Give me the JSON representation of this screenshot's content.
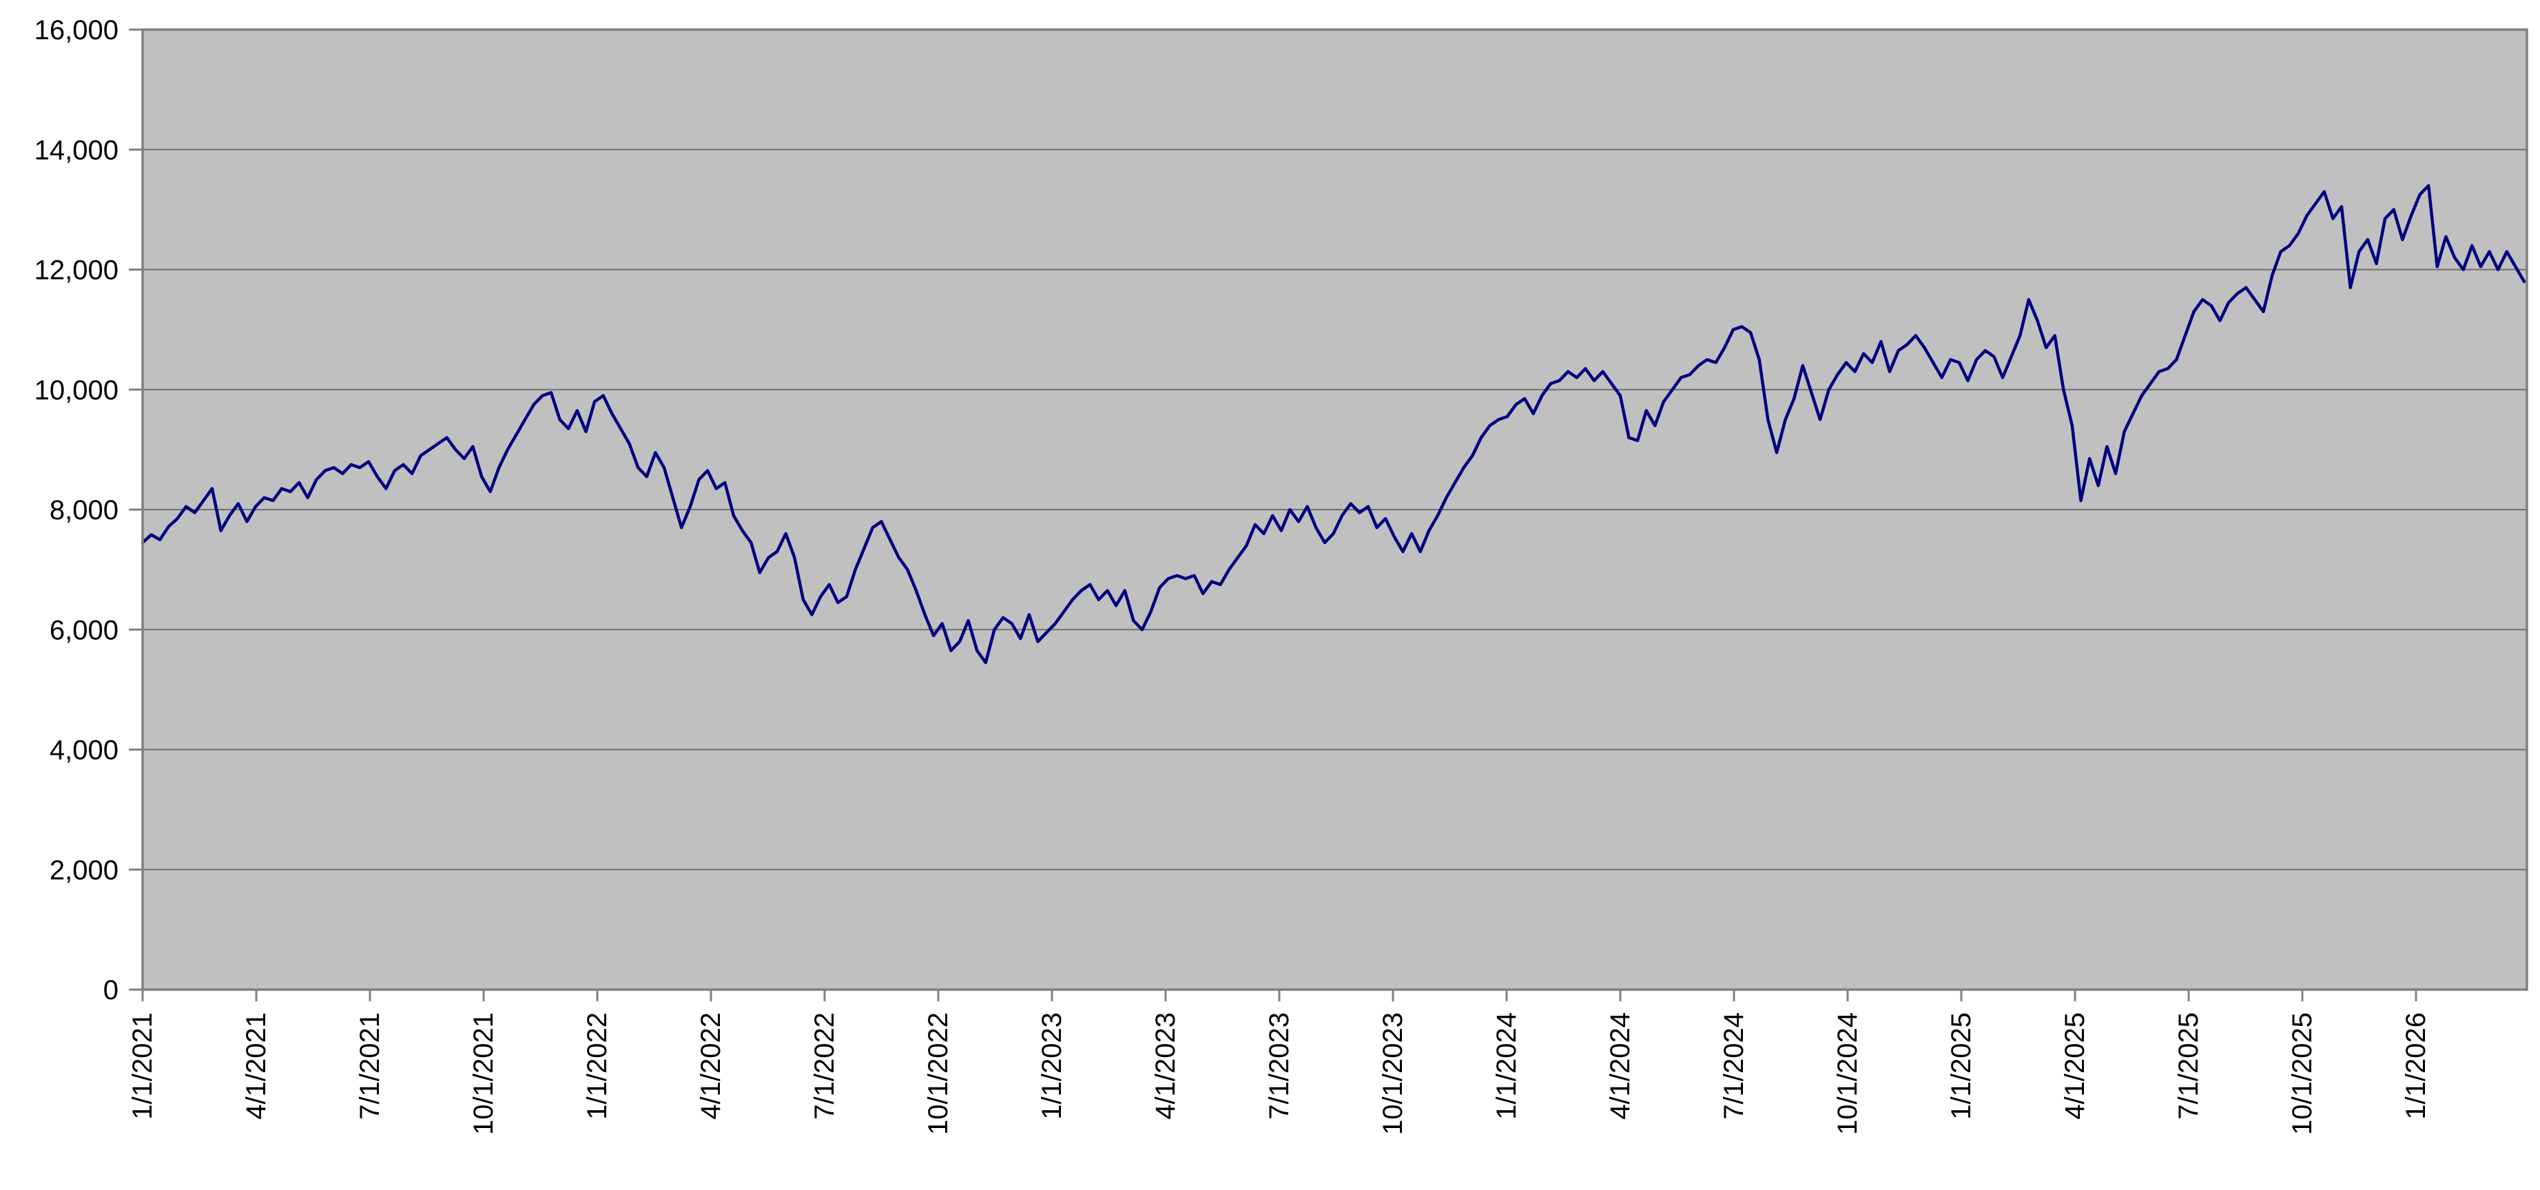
{
  "chart_data": {
    "type": "line",
    "title": "",
    "xlabel": "",
    "ylabel": "",
    "grid": true,
    "legend": false,
    "plot_bg_color": "#c0c0c0",
    "outer_bg_color": "#ffffff",
    "gridline_color": "#6f6f6f",
    "border_color": "#808080",
    "tick_color": "#808080",
    "label_color": "#000000",
    "ylim": [
      0,
      16000
    ],
    "y_ticks": [
      {
        "value": 0,
        "label": "0"
      },
      {
        "value": 2000,
        "label": "2,000"
      },
      {
        "value": 4000,
        "label": "4,000"
      },
      {
        "value": 6000,
        "label": "6,000"
      },
      {
        "value": 8000,
        "label": "8,000"
      },
      {
        "value": 10000,
        "label": "10,000"
      },
      {
        "value": 12000,
        "label": "12,000"
      },
      {
        "value": 14000,
        "label": "14,000"
      },
      {
        "value": 16000,
        "label": "16,000"
      }
    ],
    "x_tick_labels": [
      "1/1/2021",
      "4/1/2021",
      "7/1/2021",
      "10/1/2021",
      "1/1/2022",
      "4/1/2022",
      "7/1/2022",
      "10/1/2022",
      "1/1/2023",
      "4/1/2023",
      "7/1/2023",
      "10/1/2023",
      "1/1/2024",
      "4/1/2024",
      "7/1/2024",
      "10/1/2024",
      "1/1/2025",
      "4/1/2025",
      "7/1/2025",
      "10/1/2025",
      "1/1/2026"
    ],
    "series": [
      {
        "name": "value",
        "color": "#000080",
        "x_start": "1/1/2021",
        "x_step_days": 7,
        "values": [
          7450,
          7580,
          7500,
          7720,
          7850,
          8050,
          7950,
          8150,
          8350,
          7650,
          7900,
          8100,
          7800,
          8050,
          8200,
          8150,
          8350,
          8300,
          8450,
          8200,
          8500,
          8650,
          8700,
          8600,
          8750,
          8700,
          8800,
          8550,
          8350,
          8650,
          8750,
          8600,
          8900,
          9000,
          9100,
          9200,
          9000,
          8850,
          9050,
          8550,
          8300,
          8700,
          9000,
          9250,
          9500,
          9750,
          9900,
          9950,
          9500,
          9350,
          9650,
          9300,
          9800,
          9900,
          9600,
          9350,
          9100,
          8700,
          8550,
          8950,
          8700,
          8200,
          7700,
          8050,
          8500,
          8650,
          8350,
          8450,
          7900,
          7650,
          7450,
          6950,
          7200,
          7300,
          7600,
          7200,
          6500,
          6250,
          6550,
          6750,
          6450,
          6550,
          7000,
          7350,
          7700,
          7800,
          7500,
          7200,
          7000,
          6650,
          6250,
          5900,
          6100,
          5650,
          5800,
          6150,
          5650,
          5450,
          6000,
          6200,
          6100,
          5850,
          6250,
          5800,
          5950,
          6100,
          6300,
          6500,
          6650,
          6750,
          6500,
          6650,
          6400,
          6650,
          6150,
          6000,
          6300,
          6700,
          6850,
          6900,
          6850,
          6900,
          6600,
          6800,
          6750,
          7000,
          7200,
          7400,
          7750,
          7600,
          7900,
          7650,
          8000,
          7800,
          8050,
          7700,
          7450,
          7600,
          7900,
          8100,
          7950,
          8050,
          7700,
          7850,
          7550,
          7300,
          7600,
          7300,
          7650,
          7900,
          8200,
          8450,
          8700,
          8900,
          9200,
          9400,
          9500,
          9550,
          9750,
          9850,
          9600,
          9900,
          10100,
          10150,
          10300,
          10200,
          10350,
          10150,
          10300,
          10100,
          9900,
          9200,
          9150,
          9650,
          9400,
          9800,
          10000,
          10200,
          10250,
          10400,
          10500,
          10450,
          10700,
          11000,
          11050,
          10950,
          10500,
          9500,
          8950,
          9500,
          9850,
          10400,
          9950,
          9500,
          10000,
          10250,
          10450,
          10300,
          10600,
          10450,
          10800,
          10300,
          10650,
          10750,
          10900,
          10700,
          10450,
          10200,
          10500,
          10450,
          10150,
          10500,
          10650,
          10550,
          10200,
          10550,
          10900,
          11500,
          11150,
          10700,
          10900,
          10000,
          9400,
          8150,
          8850,
          8400,
          9050,
          8600,
          9300,
          9600,
          9900,
          10100,
          10300,
          10350,
          10500,
          10900,
          11300,
          11500,
          11400,
          11150,
          11450,
          11600,
          11700,
          11500,
          11300,
          11900,
          12300,
          12400,
          12600,
          12900,
          13100,
          13300,
          12850,
          13050,
          11700,
          12300,
          12500,
          12100,
          12850,
          13000,
          12500,
          12900,
          13250,
          13400,
          12050,
          12550,
          12200,
          12000,
          12400,
          12050,
          12300,
          12000,
          12300,
          12050,
          11800
        ]
      }
    ]
  }
}
